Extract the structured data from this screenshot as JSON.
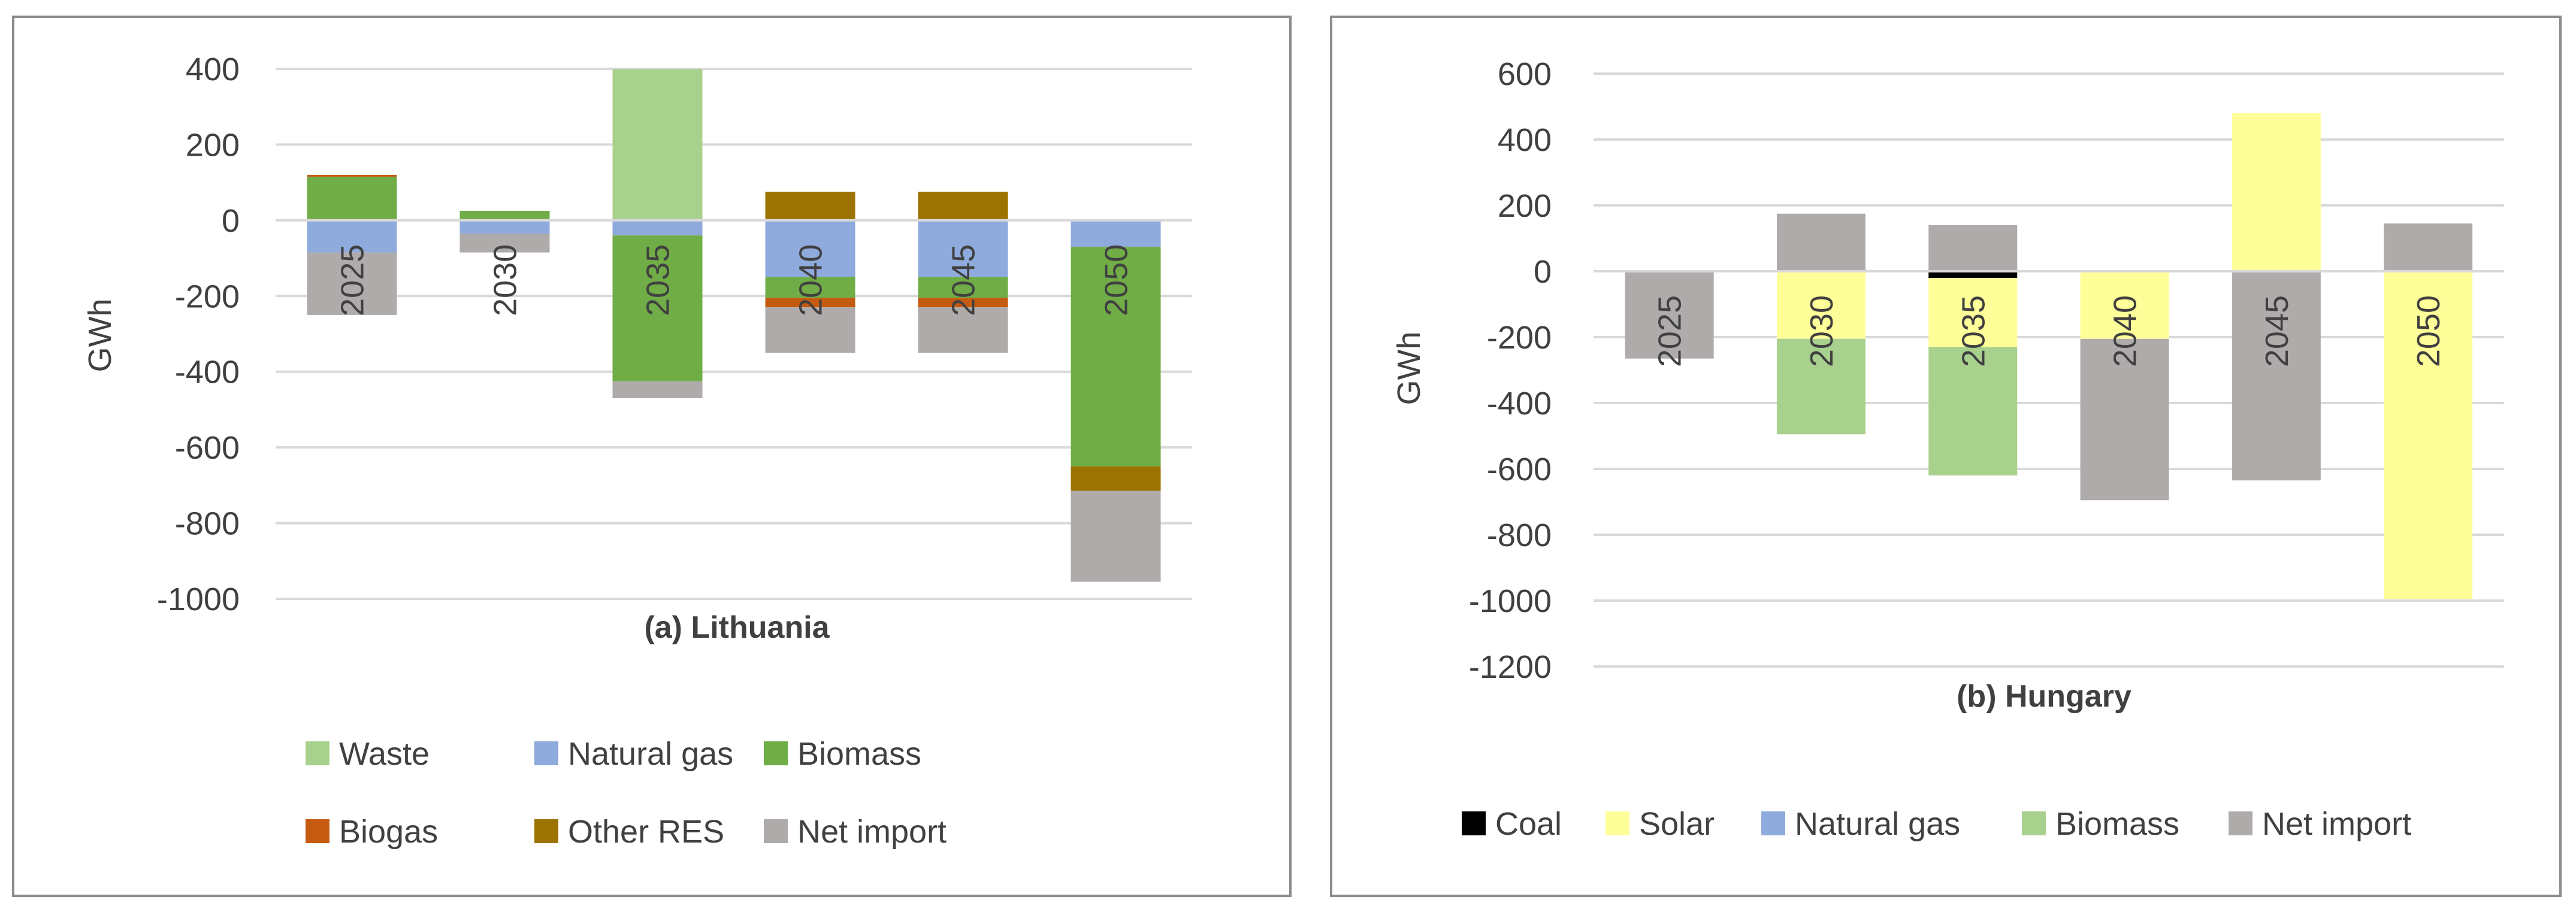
{
  "chart_data": [
    {
      "type": "bar",
      "stacked": true,
      "title": "(a) Lithuania",
      "ylabel": "GWh",
      "xlabel": "",
      "ylim": [
        -1000,
        400
      ],
      "yticks": [
        400,
        200,
        0,
        -200,
        -400,
        -600,
        -800,
        -1000
      ],
      "ytick_labels": [
        "400",
        "200",
        "0",
        "-200",
        "-400",
        "-600",
        "-800",
        "-1000"
      ],
      "categories": [
        "2025",
        "2030",
        "2035",
        "2040",
        "2045",
        "2050"
      ],
      "grid": true,
      "legend_position": "bottom",
      "series": [
        {
          "name": "Waste",
          "color": "#A9D18E",
          "values": [
            0,
            0,
            400,
            0,
            0,
            0
          ]
        },
        {
          "name": "Natural gas",
          "color": "#8FAADC",
          "values": [
            -85,
            -35,
            -40,
            -150,
            -150,
            -70
          ]
        },
        {
          "name": "Biomass",
          "color": "#70AD47",
          "values": [
            115,
            25,
            -385,
            -55,
            -55,
            -580
          ]
        },
        {
          "name": "Biogas",
          "color": "#C55A11",
          "values": [
            5,
            0,
            0,
            -25,
            -25,
            0
          ]
        },
        {
          "name": "Other RES",
          "color": "#9C7300",
          "values": [
            0,
            0,
            0,
            75,
            75,
            -65
          ]
        },
        {
          "name": "Net import",
          "color": "#AFABAB",
          "values": [
            -165,
            -50,
            -45,
            -120,
            -120,
            -240
          ]
        }
      ]
    },
    {
      "type": "bar",
      "stacked": true,
      "title": "(b) Hungary",
      "ylabel": "GWh",
      "xlabel": "",
      "ylim": [
        -1200,
        600
      ],
      "yticks": [
        600,
        400,
        200,
        0,
        -200,
        -400,
        -600,
        -800,
        -1000,
        -1200
      ],
      "ytick_labels": [
        "600",
        "400",
        "200",
        "0",
        "-200",
        "-400",
        "-600",
        "-800",
        "-1000",
        "-1200"
      ],
      "categories": [
        "2025",
        "2030",
        "2035",
        "2040",
        "2045",
        "2050"
      ],
      "grid": true,
      "legend_position": "bottom",
      "series": [
        {
          "name": "Coal",
          "color": "#000000",
          "values": [
            0,
            0,
            -20,
            0,
            0,
            0
          ]
        },
        {
          "name": "Solar",
          "color": "#FFFF99",
          "values": [
            0,
            -205,
            -210,
            -205,
            480,
            -995
          ]
        },
        {
          "name": "Natural gas",
          "color": "#8FAADC",
          "values": [
            0,
            0,
            0,
            0,
            0,
            0
          ]
        },
        {
          "name": "Biomass",
          "color": "#A9D18E",
          "values": [
            0,
            -290,
            -390,
            0,
            0,
            0
          ]
        },
        {
          "name": "Net import",
          "color": "#AFABAB",
          "values": [
            -265,
            175,
            140,
            -490,
            -635,
            145
          ]
        }
      ]
    }
  ]
}
